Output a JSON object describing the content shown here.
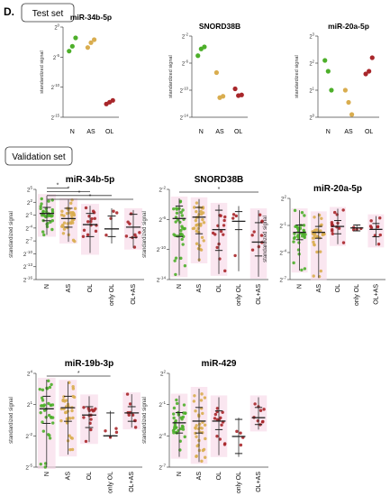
{
  "panel_label": "D.",
  "test_label": "Test set",
  "validation_label": "Validation set",
  "colors": {
    "N": "#4daf2a",
    "AS": "#d9ad4f",
    "OL": "#a8262a",
    "only OL": "#a8262a",
    "OL+AS": "#a8262a",
    "box_stroke": "#333333",
    "star": "#333333"
  },
  "chart_data": [
    {
      "type": "scatter",
      "title": "miR-34b-5p",
      "ylabel": "standardized signal",
      "yticks": [
        "2^0",
        "2^-5",
        "2^-10",
        "2^-15"
      ],
      "ylim_log2": [
        -15,
        0
      ],
      "categories": [
        "N",
        "AS",
        "OL"
      ],
      "series": [
        {
          "group": "N",
          "values_log2": [
            -4.0,
            -3.2,
            -1.8
          ]
        },
        {
          "group": "AS",
          "values_log2": [
            -3.4,
            -2.6,
            -2.1
          ]
        },
        {
          "group": "OL",
          "values_log2": [
            -12.8,
            -12.5,
            -12.2
          ]
        }
      ]
    },
    {
      "type": "scatter",
      "title": "SNORD38B",
      "ylabel": "standardized signal",
      "yticks": [
        "2^-2",
        "2^-6",
        "2^-10",
        "2^-14"
      ],
      "ylim_log2": [
        -14,
        -2
      ],
      "categories": [
        "N",
        "AS",
        "OL"
      ],
      "series": [
        {
          "group": "N",
          "values_log2": [
            -4.9,
            -3.9,
            -3.6
          ]
        },
        {
          "group": "AS",
          "values_log2": [
            -7.4,
            -11.1,
            -10.9
          ]
        },
        {
          "group": "OL",
          "values_log2": [
            -9.8,
            -10.8,
            -10.7
          ]
        }
      ]
    },
    {
      "type": "scatter",
      "title": "miR-20a-5p",
      "ylabel": "standardized signal",
      "yticks": [
        "2^3",
        "2^2",
        "2^1",
        "2^0"
      ],
      "ylim_log2": [
        0,
        3
      ],
      "categories": [
        "N",
        "AS",
        "OL"
      ],
      "series": [
        {
          "group": "N",
          "values_log2": [
            2.1,
            1.7,
            1.0
          ]
        },
        {
          "group": "AS",
          "values_log2": [
            1.0,
            0.55,
            0.1
          ]
        },
        {
          "group": "OL",
          "values_log2": [
            1.6,
            1.7,
            2.2
          ]
        }
      ]
    },
    {
      "type": "scatter",
      "title": "miR-34b-5p",
      "ylabel": "standardized signal",
      "yticks": [
        "2^5",
        "2^2",
        "2^-1",
        "2^-4",
        "2^-7",
        "2^-10",
        "2^-13",
        "2^-16"
      ],
      "ylim_log2": [
        -16,
        5
      ],
      "categories": [
        "N",
        "AS",
        "OL",
        "only OL",
        "OL+AS"
      ],
      "significance": [
        [
          "N",
          "AS"
        ],
        [
          "N",
          "OL"
        ],
        [
          "N",
          "only OL"
        ],
        [
          "N",
          "OL+AS"
        ]
      ],
      "star": "*",
      "series": [
        {
          "group": "N",
          "median": -0.6,
          "q1": -2.3,
          "q3": 0.8,
          "range": [
            -5.6,
            3.5
          ]
        },
        {
          "group": "AS",
          "median": -1.8,
          "q1": -3.8,
          "q3": 0.6,
          "range": [
            -7.2,
            2.6
          ]
        },
        {
          "group": "OL",
          "median": -3.2,
          "q1": -6.0,
          "q3": -0.6,
          "range": [
            -9.8,
            1.2
          ]
        },
        {
          "group": "only OL",
          "median": -4.2,
          "q1": -6.0,
          "q3": -1.2,
          "range": [
            -7.6,
            0.6
          ]
        },
        {
          "group": "OL+AS",
          "median": -3.8,
          "q1": -6.2,
          "q3": -0.8,
          "range": [
            -8.6,
            0.2
          ]
        }
      ]
    },
    {
      "type": "scatter",
      "title": "SNORD38B",
      "ylabel": "standardized signal",
      "yticks": [
        "2^-2",
        "2^-6",
        "2^-10",
        "2^-14"
      ],
      "ylim_log2": [
        -15,
        -2
      ],
      "categories": [
        "N",
        "AS",
        "OL",
        "only OL",
        "OL+AS"
      ],
      "significance": [
        [
          "N",
          "OL+AS"
        ]
      ],
      "star": "*",
      "series": [
        {
          "group": "N",
          "median": -6.2,
          "q1": -8.8,
          "q3": -4.4,
          "range": [
            -14.4,
            -3.3
          ]
        },
        {
          "group": "AS",
          "median": -6.0,
          "q1": -8.4,
          "q3": -4.6,
          "range": [
            -12.4,
            -3.4
          ]
        },
        {
          "group": "OL",
          "median": -7.8,
          "q1": -10.8,
          "q3": -5.0,
          "range": [
            -14.2,
            -4.2
          ]
        },
        {
          "group": "only OL",
          "median": -6.6,
          "q1": -7.8,
          "q3": -5.2,
          "range": [
            -13.8,
            -4.4
          ]
        },
        {
          "group": "OL+AS",
          "median": -9.6,
          "q1": -11.6,
          "q3": -6.8,
          "range": [
            -14.6,
            -5.0
          ]
        }
      ]
    },
    {
      "type": "scatter",
      "title": "miR-20a-5p",
      "ylabel": "standardized signal",
      "yticks": [
        "2^2",
        "2^-1",
        "2^-4",
        "2^-7"
      ],
      "ylim_log2": [
        -8,
        3
      ],
      "categories": [
        "N",
        "AS",
        "OL",
        "only OL",
        "OL+AS"
      ],
      "series": [
        {
          "group": "N",
          "median": -1.6,
          "q1": -2.6,
          "q3": -0.6,
          "range": [
            -6.8,
            1.4
          ]
        },
        {
          "group": "AS",
          "median": -1.6,
          "q1": -2.4,
          "q3": -0.8,
          "range": [
            -7.8,
            1.0
          ]
        },
        {
          "group": "OL",
          "median": -0.8,
          "q1": -1.8,
          "q3": 0.0,
          "range": [
            -3.2,
            1.6
          ]
        },
        {
          "group": "only OL",
          "median": -1.0,
          "q1": -1.4,
          "q3": -0.6,
          "range": [
            -1.4,
            -0.6
          ]
        },
        {
          "group": "OL+AS",
          "median": -1.2,
          "q1": -2.2,
          "q3": -0.4,
          "range": [
            -3.4,
            0.6
          ]
        }
      ]
    },
    {
      "type": "scatter",
      "title": "miR-19b-3p",
      "ylabel": "standardized signal",
      "yticks": [
        "2^4",
        "2^1",
        "2^-2",
        "2^-5"
      ],
      "ylim_log2": [
        -5,
        4
      ],
      "categories": [
        "N",
        "AS",
        "OL",
        "only OL",
        "OL+AS"
      ],
      "significance": [
        [
          "N",
          "only OL"
        ]
      ],
      "star": "*",
      "series": [
        {
          "group": "N",
          "median": 0.6,
          "q1": -0.8,
          "q3": 1.8,
          "range": [
            -5.0,
            3.4
          ]
        },
        {
          "group": "AS",
          "median": 0.7,
          "q1": -0.6,
          "q3": 1.8,
          "range": [
            -3.8,
            3.2
          ]
        },
        {
          "group": "OL",
          "median": 0.0,
          "q1": -1.2,
          "q3": 0.8,
          "range": [
            -2.6,
            1.8
          ]
        },
        {
          "group": "only OL",
          "median": -2.0,
          "q1": -2.0,
          "q3": 0.2,
          "range": [
            -2.2,
            0.4
          ]
        },
        {
          "group": "OL+AS",
          "median": 0.2,
          "q1": -0.6,
          "q3": 0.8,
          "range": [
            -1.2,
            2.0
          ]
        }
      ]
    },
    {
      "type": "scatter",
      "title": "miR-429",
      "ylabel": "standardized signal",
      "yticks": [
        "2^2",
        "2^-1",
        "2^-4",
        "2^-7"
      ],
      "ylim_log2": [
        -8,
        3
      ],
      "categories": [
        "N",
        "AS",
        "OL",
        "only OL",
        "OL+AS"
      ],
      "series": [
        {
          "group": "N",
          "median": -2.8,
          "q1": -4.0,
          "q3": -1.6,
          "range": [
            -6.8,
            0.4
          ]
        },
        {
          "group": "AS",
          "median": -2.6,
          "q1": -4.0,
          "q3": -1.0,
          "range": [
            -7.4,
            1.2
          ]
        },
        {
          "group": "OL",
          "median": -2.6,
          "q1": -3.6,
          "q3": -1.4,
          "range": [
            -6.6,
            0.2
          ]
        },
        {
          "group": "only OL",
          "median": -4.4,
          "q1": -6.4,
          "q3": -2.4,
          "range": [
            -6.8,
            -2.2
          ]
        },
        {
          "group": "OL+AS",
          "median": -2.2,
          "q1": -3.0,
          "q3": -1.0,
          "range": [
            -3.6,
            0.2
          ]
        }
      ]
    }
  ]
}
